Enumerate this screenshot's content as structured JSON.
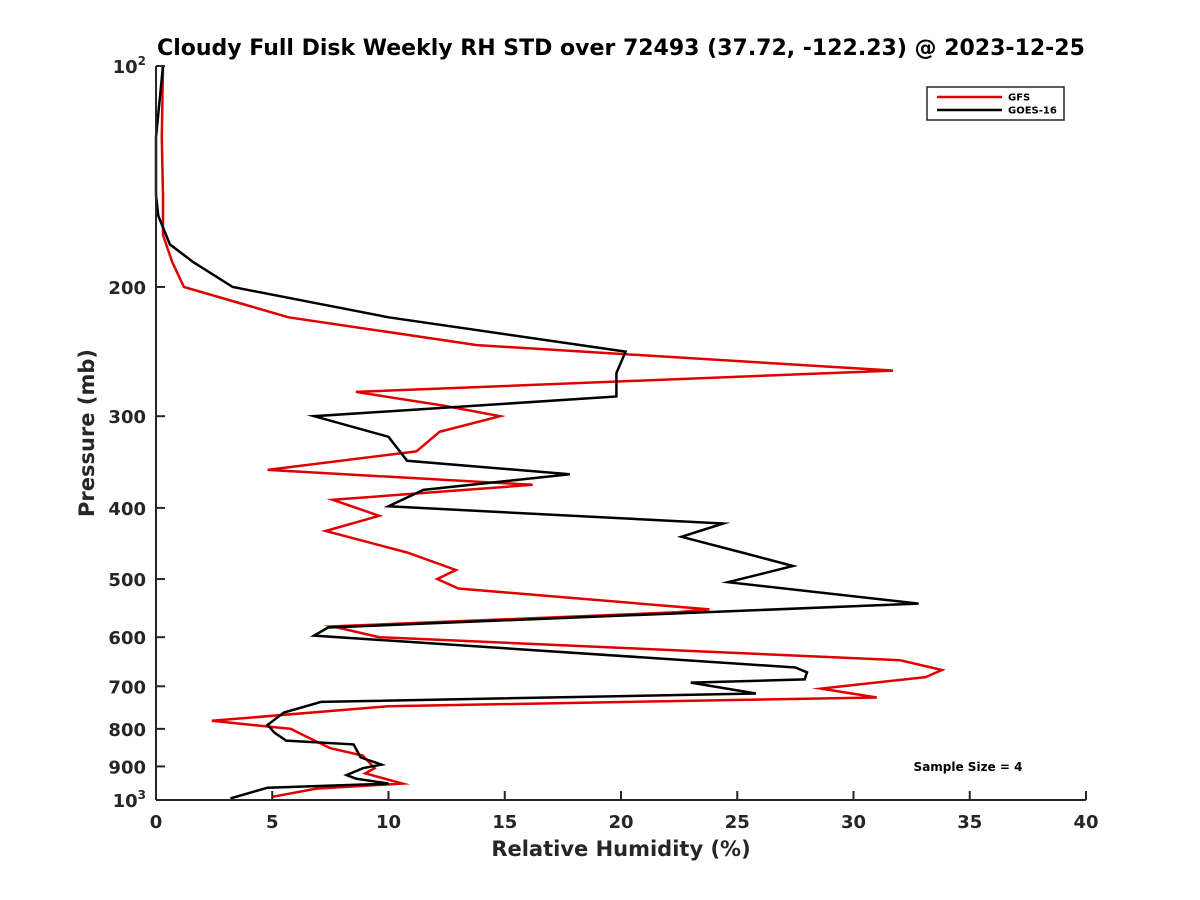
{
  "chart_data": {
    "type": "line",
    "title": "Cloudy Full Disk Weekly RH STD over 72493 (37.72, -122.23) @ 2023-12-25",
    "xlabel": "Relative Humidity (%)",
    "ylabel": "Pressure (mb)",
    "xlim": [
      0,
      40
    ],
    "ylim": [
      100,
      1000
    ],
    "y_scale": "log",
    "y_reversed": true,
    "x_ticks": [
      0,
      5,
      10,
      15,
      20,
      25,
      30,
      35,
      40
    ],
    "y_ticks": [
      {
        "value": 100,
        "label": "10",
        "sup": "2"
      },
      {
        "value": 200,
        "label": "200",
        "sup": ""
      },
      {
        "value": 300,
        "label": "300",
        "sup": ""
      },
      {
        "value": 400,
        "label": "400",
        "sup": ""
      },
      {
        "value": 500,
        "label": "500",
        "sup": ""
      },
      {
        "value": 600,
        "label": "600",
        "sup": ""
      },
      {
        "value": 700,
        "label": "700",
        "sup": ""
      },
      {
        "value": 800,
        "label": "800",
        "sup": ""
      },
      {
        "value": 900,
        "label": "900",
        "sup": ""
      },
      {
        "value": 1000,
        "label": "10",
        "sup": "3"
      }
    ],
    "grid": false,
    "legend_position": "top-right",
    "annotation": "Sample Size = 4",
    "series": [
      {
        "name": "GFS",
        "color": "#e00000",
        "points": [
          [
            0.3,
            100
          ],
          [
            0.25,
            125
          ],
          [
            0.3,
            150
          ],
          [
            0.3,
            170
          ],
          [
            0.7,
            185
          ],
          [
            1.2,
            200
          ],
          [
            3.5,
            210
          ],
          [
            5.7,
            220
          ],
          [
            13.8,
            240
          ],
          [
            31.7,
            260
          ],
          [
            8.6,
            278
          ],
          [
            12.3,
            290
          ],
          [
            14.8,
            300
          ],
          [
            12.2,
            315
          ],
          [
            11.2,
            335
          ],
          [
            4.8,
            355
          ],
          [
            16.2,
            372
          ],
          [
            7.6,
            390
          ],
          [
            9.6,
            410
          ],
          [
            7.3,
            430
          ],
          [
            10.8,
            460
          ],
          [
            12.9,
            486
          ],
          [
            12.1,
            500
          ],
          [
            13.0,
            515
          ],
          [
            23.8,
            550
          ],
          [
            22.4,
            555
          ],
          [
            7.6,
            580
          ],
          [
            9.6,
            600
          ],
          [
            32.0,
            645
          ],
          [
            33.8,
            665
          ],
          [
            33.1,
            680
          ],
          [
            28.6,
            705
          ],
          [
            31.0,
            725
          ],
          [
            10.0,
            745
          ],
          [
            2.4,
            780
          ],
          [
            5.8,
            800
          ],
          [
            6.3,
            815
          ],
          [
            7.5,
            850
          ],
          [
            8.9,
            870
          ],
          [
            9.4,
            905
          ],
          [
            9.0,
            920
          ],
          [
            10.6,
            950
          ],
          [
            6.9,
            965
          ],
          [
            5.0,
            990
          ]
        ]
      },
      {
        "name": "GOES-16",
        "color": "#000000",
        "points": [
          [
            0.3,
            100
          ],
          [
            0.0,
            125
          ],
          [
            0.0,
            150
          ],
          [
            0.1,
            160
          ],
          [
            0.6,
            175
          ],
          [
            1.6,
            185
          ],
          [
            3.3,
            200
          ],
          [
            10.0,
            220
          ],
          [
            20.2,
            245
          ],
          [
            19.8,
            262
          ],
          [
            19.8,
            282
          ],
          [
            6.8,
            300
          ],
          [
            10.0,
            320
          ],
          [
            10.8,
            345
          ],
          [
            17.8,
            360
          ],
          [
            11.5,
            378
          ],
          [
            10.0,
            398
          ],
          [
            24.4,
            420
          ],
          [
            22.6,
            438
          ],
          [
            25.2,
            460
          ],
          [
            27.4,
            480
          ],
          [
            24.6,
            505
          ],
          [
            32.8,
            540
          ],
          [
            7.4,
            582
          ],
          [
            6.8,
            597
          ],
          [
            27.5,
            660
          ],
          [
            28.0,
            670
          ],
          [
            27.9,
            685
          ],
          [
            23.0,
            692
          ],
          [
            25.8,
            716
          ],
          [
            7.1,
            735
          ],
          [
            5.5,
            760
          ],
          [
            4.8,
            790
          ],
          [
            5.1,
            810
          ],
          [
            5.6,
            830
          ],
          [
            8.5,
            840
          ],
          [
            8.8,
            875
          ],
          [
            9.7,
            895
          ],
          [
            8.9,
            905
          ],
          [
            8.2,
            925
          ],
          [
            8.6,
            935
          ],
          [
            10.0,
            950
          ],
          [
            4.8,
            962
          ],
          [
            3.2,
            995
          ]
        ]
      }
    ]
  }
}
